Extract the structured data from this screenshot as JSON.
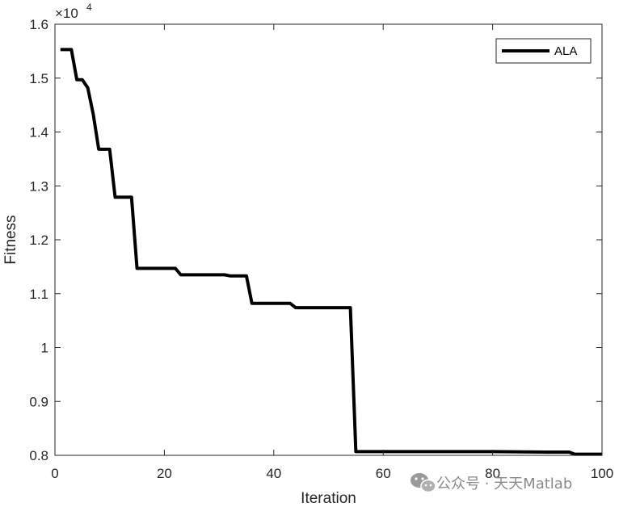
{
  "chart_data": {
    "type": "line",
    "title": "",
    "xlabel": "Iteration",
    "ylabel": "Fitness",
    "xlim": [
      0,
      100
    ],
    "ylim": [
      8000,
      16000
    ],
    "y_exponent_label": "×10",
    "y_exponent_power": "4",
    "xticks": [
      0,
      20,
      40,
      60,
      80,
      100
    ],
    "xtick_labels": [
      "0",
      "20",
      "40",
      "60",
      "80",
      "100"
    ],
    "yticks": [
      8000,
      9000,
      10000,
      11000,
      12000,
      13000,
      14000,
      15000,
      16000
    ],
    "ytick_labels": [
      "0.8",
      "0.9",
      "1",
      "1.1",
      "1.2",
      "1.3",
      "1.4",
      "1.5",
      "1.6"
    ],
    "grid": false,
    "legend_position": "top-right",
    "series": [
      {
        "name": "ALA",
        "color": "#000000",
        "x": [
          1,
          3,
          4,
          5,
          6,
          7,
          8,
          9,
          10,
          11,
          12,
          13,
          14,
          15,
          16,
          17,
          18,
          19,
          20,
          21,
          22,
          23,
          24,
          25,
          26,
          27,
          28,
          29,
          30,
          31,
          32,
          33,
          34,
          35,
          36,
          37,
          38,
          39,
          40,
          41,
          42,
          43,
          44,
          45,
          46,
          47,
          48,
          49,
          50,
          51,
          52,
          53,
          54,
          55,
          56,
          60,
          70,
          80,
          90,
          94,
          95,
          100
        ],
        "y": [
          15530,
          15530,
          14970,
          14970,
          14820,
          14330,
          13680,
          13680,
          13680,
          12790,
          12790,
          12790,
          12790,
          11470,
          11470,
          11470,
          11470,
          11470,
          11470,
          11470,
          11470,
          11350,
          11350,
          11350,
          11350,
          11350,
          11350,
          11350,
          11350,
          11350,
          11330,
          11330,
          11330,
          11330,
          10820,
          10820,
          10820,
          10820,
          10820,
          10820,
          10820,
          10820,
          10740,
          10740,
          10740,
          10740,
          10740,
          10740,
          10740,
          10740,
          10740,
          10740,
          10740,
          8070,
          8070,
          8070,
          8070,
          8070,
          8060,
          8060,
          8020,
          8020
        ]
      }
    ]
  },
  "watermark": {
    "icon": "wechat-icon",
    "text": "公众号 · 天天Matlab"
  }
}
